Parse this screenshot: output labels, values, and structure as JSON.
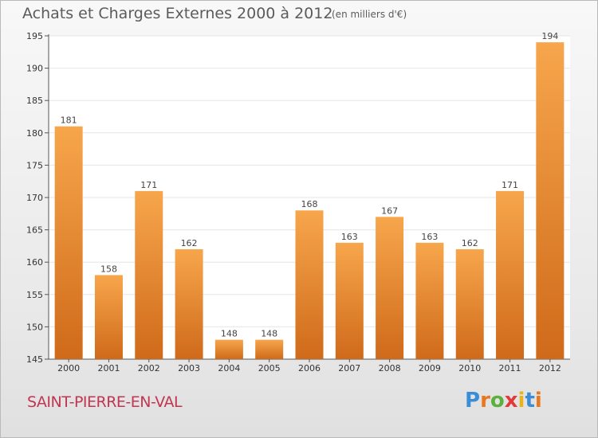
{
  "header": {
    "title": "Achats et Charges Externes 2000 à 2012",
    "subtitle": "(en milliers d'€)"
  },
  "footer": {
    "place": "SAINT-PIERRE-EN-VAL",
    "logo_letters": [
      "P",
      "r",
      "o",
      "x",
      "i",
      "t",
      "i"
    ],
    "logo_colors": [
      "#3b8ed6",
      "#e8771e",
      "#5ab13e",
      "#e03a3a",
      "#e8b41e",
      "#3b8ed6",
      "#e8771e"
    ]
  },
  "colors": {
    "bar_top": "#f7a64c",
    "bar_bottom": "#cf6a1a",
    "plot_bg": "#ffffff",
    "grid": "#e6e6e6",
    "axis": "#555555"
  },
  "chart_data": {
    "type": "bar",
    "categories": [
      "2000",
      "2001",
      "2002",
      "2003",
      "2004",
      "2005",
      "2006",
      "2007",
      "2008",
      "2009",
      "2010",
      "2011",
      "2012"
    ],
    "values": [
      181,
      158,
      171,
      162,
      148,
      148,
      168,
      163,
      167,
      163,
      162,
      171,
      194
    ],
    "ylim": [
      145,
      195
    ],
    "yticks": [
      145,
      150,
      155,
      160,
      165,
      170,
      175,
      180,
      185,
      190,
      195
    ],
    "grid": true,
    "legend": "none"
  }
}
